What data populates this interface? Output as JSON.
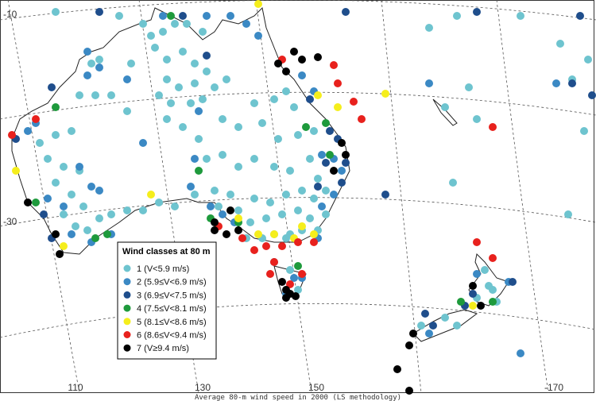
{
  "map": {
    "caption": "Average 80-m wind speed in 2000 (LS methodology)",
    "lat_labels": [
      "-10",
      "-30"
    ],
    "lon_labels": [
      "110",
      "130",
      "150",
      "-170"
    ],
    "legend": {
      "title": "Wind classes at 80 m",
      "items": [
        {
          "label": "1 (V<5.9 m/s)",
          "color": "#6ec4cf"
        },
        {
          "label": "2 (5.9≤V<6.9 m/s)",
          "color": "#3b89c4"
        },
        {
          "label": "3 (6.9≤V<7.5 m/s)",
          "color": "#1f4e8c"
        },
        {
          "label": "4 (7.5≤V<8.1 m/s)",
          "color": "#1e9a3c"
        },
        {
          "label": "5 (8.1≤V<8.6 m/s)",
          "color": "#f5ee1c"
        },
        {
          "label": "6 (8.6≤V<9.4 m/s)",
          "color": "#e8211d"
        },
        {
          "label": "7 (V≥9.4 m/s)",
          "color": "#000000"
        }
      ]
    }
  }
}
